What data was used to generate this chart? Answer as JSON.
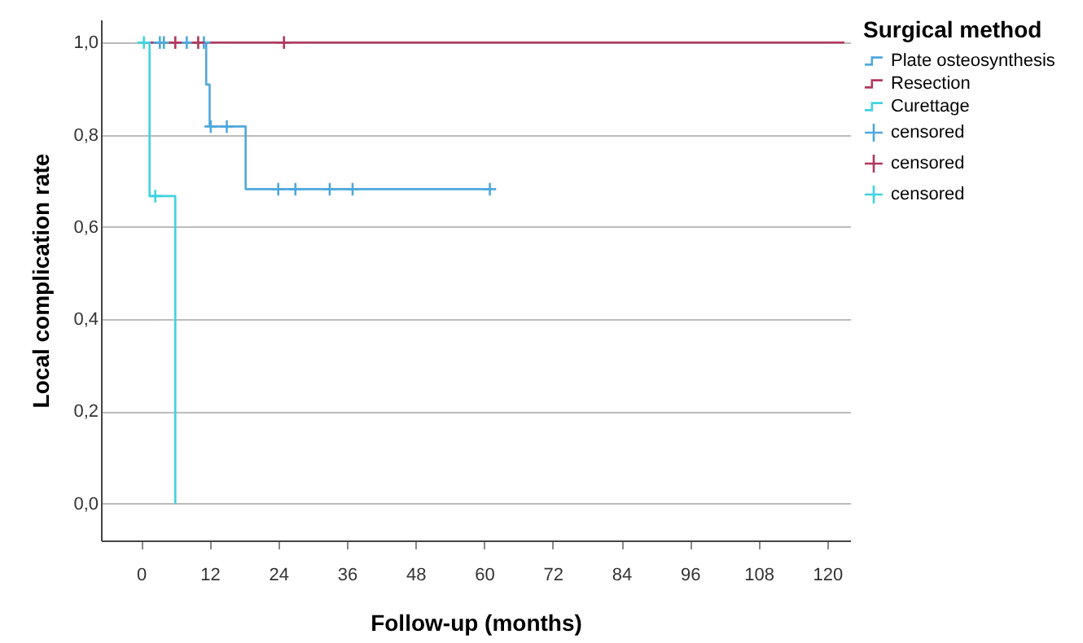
{
  "chart_data": {
    "type": "step",
    "xlabel": "Follow-up (months)",
    "ylabel": "Local complication rate",
    "legend_title": "Surgical method",
    "series": [
      {
        "name": "Plate osteosynthesis",
        "color": "#4fa8dc",
        "x": [
          0,
          11.4,
          12,
          18.3,
          61
        ],
        "values": [
          1,
          0.909,
          0.818,
          0.682,
          0.682
        ]
      },
      {
        "name": "Resection",
        "color": "#b2385e",
        "x": [
          0,
          123
        ],
        "values": [
          1,
          1
        ]
      },
      {
        "name": "Curettage",
        "color": "#3fd3e0",
        "x": [
          0,
          1.5,
          6
        ],
        "values": [
          1,
          0.667,
          0
        ]
      },
      {
        "name": "censored",
        "type": "scatter",
        "marker": "cross",
        "color": "#4fa8dc",
        "x": [
          3.3,
          4,
          8,
          11,
          12.2,
          15,
          24,
          27,
          33,
          37,
          61
        ],
        "values": [
          1,
          1,
          1,
          1,
          0.818,
          0.818,
          0.682,
          0.682,
          0.682,
          0.682,
          0.682
        ]
      },
      {
        "name": "censored",
        "type": "scatter",
        "marker": "cross",
        "color": "#b2385e",
        "x": [
          6,
          10,
          25
        ],
        "values": [
          1,
          1,
          1
        ]
      },
      {
        "name": "censored",
        "type": "scatter",
        "marker": "cross",
        "color": "#3fd3e0",
        "x": [
          0.5,
          2.5
        ],
        "values": [
          1,
          0.667
        ]
      }
    ],
    "xlim": [
      -7,
      124
    ],
    "xticks": [
      0,
      12,
      24,
      36,
      48,
      60,
      72,
      84,
      96,
      108,
      120
    ],
    "ylim": [
      -0.08,
      1.05
    ],
    "yticks": [
      {
        "value": 0,
        "label": "0,0"
      },
      {
        "value": 0.2,
        "label": "0,2"
      },
      {
        "value": 0.4,
        "label": "0,4"
      },
      {
        "value": 0.6,
        "label": "0,6"
      },
      {
        "value": 0.8,
        "label": "0,8"
      },
      {
        "value": 1,
        "label": "1,0"
      }
    ],
    "grid": "y",
    "legend": "top right"
  }
}
